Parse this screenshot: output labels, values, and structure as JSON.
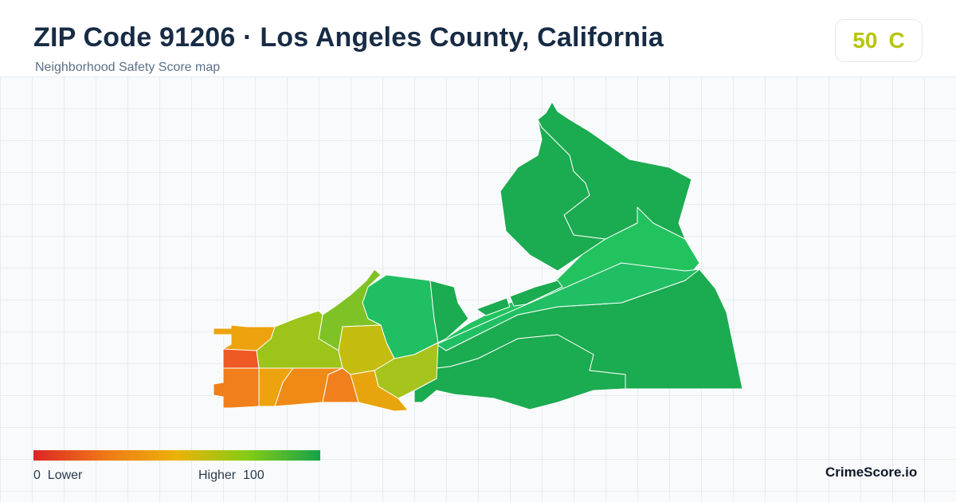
{
  "header": {
    "title": "ZIP Code 91206 · Los Angeles County, California",
    "subtitle": "Neighborhood Safety Score map"
  },
  "score": {
    "value": "50",
    "grade": "C",
    "color": "#b8c40e"
  },
  "legend": {
    "min_value": "0",
    "min_label": "Lower",
    "max_label": "Higher",
    "max_value": "100",
    "gradient": [
      "#dc2626",
      "#f07817",
      "#eab308",
      "#84cc16",
      "#16a34a"
    ]
  },
  "brand": {
    "name": "CrimeScore.io"
  },
  "map": {
    "colors": {
      "dark_green": "#1bab50",
      "green": "#22c35e",
      "light_green": "#21bf63",
      "lime": "#9cc41b",
      "yellow_green": "#c5bc10",
      "amber": "#eca30d",
      "orange": "#f07f1c",
      "red_orange": "#ef5a24"
    }
  }
}
